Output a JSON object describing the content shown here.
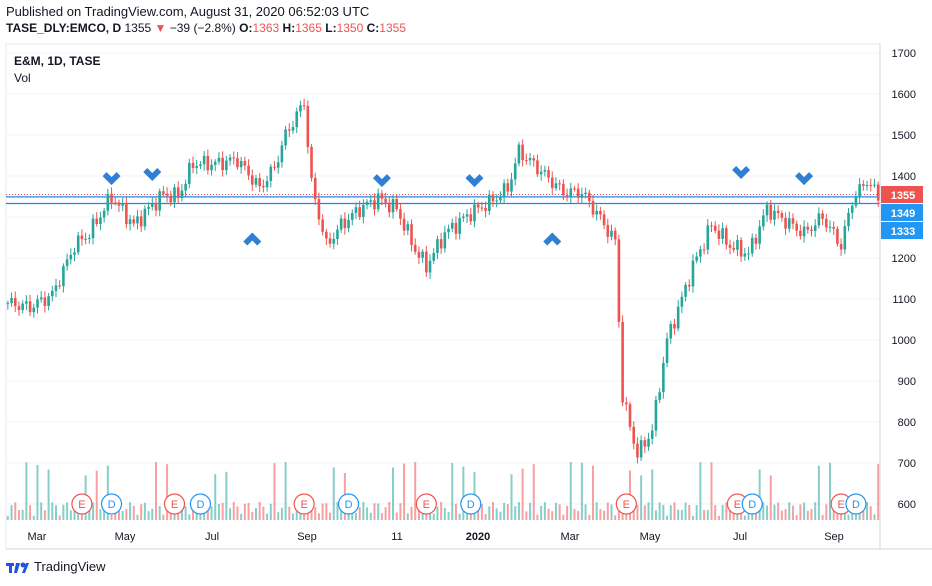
{
  "header": {
    "published": "Published on TradingView.com, August 31, 2020 06:52:03 UTC",
    "symbol": "TASE_DLY:EMCO, D",
    "last": "1355",
    "change": "−39 (−2.8%)",
    "o_label": "O:",
    "o_val": "1363",
    "h_label": "H:",
    "h_val": "1365",
    "l_label": "L:",
    "l_val": "1350",
    "c_label": "C:",
    "c_val": "1355"
  },
  "legend": {
    "title": "E&M, 1D, TASE",
    "sub": "Vol"
  },
  "brand": "TradingView",
  "colors": {
    "up": "#26a69a",
    "down": "#ef5350",
    "hline": "#1e88e5",
    "arrow": "#2f7fd2",
    "earn": "#ef5350",
    "div": "#2196f3"
  },
  "chart_data": {
    "type": "candlestick",
    "y_ticks": [
      600,
      700,
      800,
      900,
      1000,
      1100,
      1200,
      1300,
      1400,
      1500,
      1600,
      1700
    ],
    "x_ticks": [
      "Mar",
      "May",
      "Jul",
      "Sep",
      "11",
      "2020",
      "Mar",
      "May",
      "Jul",
      "Sep"
    ],
    "price_labels": [
      {
        "value": 1355,
        "text": "1355",
        "color": "#ef5350"
      },
      {
        "value": 1349,
        "text": "1349",
        "color": "#2196f3"
      },
      {
        "value": 1333,
        "text": "1333",
        "color": "#2196f3"
      }
    ],
    "hlines": [
      1349,
      1333
    ],
    "dotted_line": 1355,
    "path": [
      [
        0,
        1090
      ],
      [
        6,
        1080
      ],
      [
        12,
        1110
      ],
      [
        18,
        1230
      ],
      [
        22,
        1260
      ],
      [
        28,
        1350
      ],
      [
        34,
        1280
      ],
      [
        38,
        1320
      ],
      [
        42,
        1355
      ],
      [
        46,
        1350
      ],
      [
        50,
        1430
      ],
      [
        56,
        1430
      ],
      [
        62,
        1440
      ],
      [
        68,
        1370
      ],
      [
        72,
        1420
      ],
      [
        75,
        1500
      ],
      [
        80,
        1580
      ],
      [
        82,
        1380
      ],
      [
        86,
        1230
      ],
      [
        90,
        1280
      ],
      [
        95,
        1320
      ],
      [
        100,
        1345
      ],
      [
        105,
        1320
      ],
      [
        110,
        1220
      ],
      [
        113,
        1180
      ],
      [
        118,
        1260
      ],
      [
        125,
        1310
      ],
      [
        131,
        1340
      ],
      [
        135,
        1370
      ],
      [
        138,
        1460
      ],
      [
        143,
        1420
      ],
      [
        150,
        1360
      ],
      [
        155,
        1360
      ],
      [
        159,
        1310
      ],
      [
        164,
        1240
      ],
      [
        166,
        860
      ],
      [
        170,
        720
      ],
      [
        174,
        780
      ],
      [
        178,
        1000
      ],
      [
        182,
        1100
      ],
      [
        185,
        1180
      ],
      [
        190,
        1280
      ],
      [
        195,
        1230
      ],
      [
        200,
        1210
      ],
      [
        205,
        1320
      ],
      [
        210,
        1290
      ],
      [
        215,
        1260
      ],
      [
        220,
        1300
      ],
      [
        225,
        1230
      ],
      [
        228,
        1340
      ],
      [
        232,
        1390
      ],
      [
        235,
        1350
      ]
    ],
    "up_arrows": [
      [
        66,
        1250
      ],
      [
        147,
        1250
      ]
    ],
    "down_arrows": [
      [
        28,
        1390
      ],
      [
        39,
        1400
      ],
      [
        101,
        1385
      ],
      [
        126,
        1385
      ],
      [
        198,
        1405
      ],
      [
        215,
        1390
      ]
    ],
    "events": [
      {
        "t": "E",
        "i": 20
      },
      {
        "t": "D",
        "i": 28
      },
      {
        "t": "E",
        "i": 45
      },
      {
        "t": "D",
        "i": 52
      },
      {
        "t": "E",
        "i": 80
      },
      {
        "t": "D",
        "i": 92
      },
      {
        "t": "E",
        "i": 113
      },
      {
        "t": "D",
        "i": 125
      },
      {
        "t": "E",
        "i": 167
      },
      {
        "t": "E",
        "i": 197
      },
      {
        "t": "D",
        "i": 201
      },
      {
        "t": "E",
        "i": 225
      },
      {
        "t": "D",
        "i": 229
      }
    ]
  }
}
